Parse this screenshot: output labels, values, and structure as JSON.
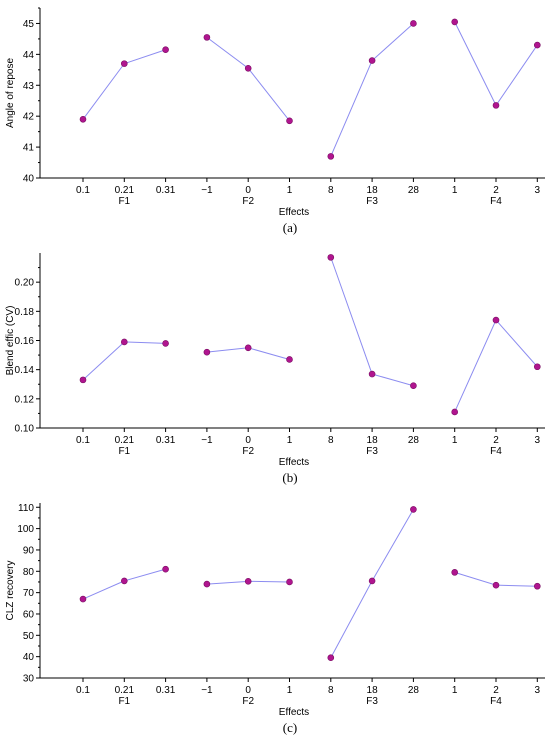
{
  "chart_data": [
    {
      "type": "line",
      "panel_label": "(a)",
      "ylabel": "Angle of repose",
      "xlabel": "Effects",
      "ylim": [
        40,
        45.5
      ],
      "yticks": [
        "40",
        "41",
        "42",
        "43",
        "44",
        "45"
      ],
      "groups": [
        {
          "name": "F1",
          "levels": [
            "0.1",
            "0.21",
            "0.31"
          ],
          "values": [
            41.9,
            43.7,
            44.15
          ]
        },
        {
          "name": "F2",
          "levels": [
            "−1",
            "0",
            "1"
          ],
          "values": [
            44.55,
            43.55,
            41.85
          ]
        },
        {
          "name": "F3",
          "levels": [
            "8",
            "18",
            "28"
          ],
          "values": [
            40.7,
            43.8,
            45.0
          ]
        },
        {
          "name": "F4",
          "levels": [
            "1",
            "2",
            "3"
          ],
          "values": [
            45.05,
            42.35,
            44.3
          ]
        }
      ],
      "grid": false
    },
    {
      "type": "line",
      "panel_label": "(b)",
      "ylabel": "Blend effic (CV)",
      "xlabel": "Effects",
      "ylim": [
        0.1,
        0.22
      ],
      "yticks": [
        "0.10",
        "0.12",
        "0.14",
        "0.16",
        "0.18",
        "0.20"
      ],
      "groups": [
        {
          "name": "F1",
          "levels": [
            "0.1",
            "0.21",
            "0.31"
          ],
          "values": [
            0.133,
            0.159,
            0.158
          ]
        },
        {
          "name": "F2",
          "levels": [
            "−1",
            "0",
            "1"
          ],
          "values": [
            0.152,
            0.155,
            0.147
          ]
        },
        {
          "name": "F3",
          "levels": [
            "8",
            "18",
            "28"
          ],
          "values": [
            0.217,
            0.137,
            0.129
          ]
        },
        {
          "name": "F4",
          "levels": [
            "1",
            "2",
            "3"
          ],
          "values": [
            0.111,
            0.174,
            0.142
          ]
        }
      ],
      "grid": false
    },
    {
      "type": "line",
      "panel_label": "(c)",
      "ylabel": "CLZ recovery",
      "xlabel": "Effects",
      "ylim": [
        30,
        112
      ],
      "yticks": [
        "30",
        "40",
        "50",
        "60",
        "70",
        "80",
        "90",
        "100",
        "110"
      ],
      "groups": [
        {
          "name": "F1",
          "levels": [
            "0.1",
            "0.21",
            "0.31"
          ],
          "values": [
            67,
            75.5,
            81
          ]
        },
        {
          "name": "F2",
          "levels": [
            "−1",
            "0",
            "1"
          ],
          "values": [
            74,
            75.3,
            75
          ]
        },
        {
          "name": "F3",
          "levels": [
            "8",
            "18",
            "28"
          ],
          "values": [
            39.5,
            75.5,
            109
          ]
        },
        {
          "name": "F4",
          "levels": [
            "1",
            "2",
            "3"
          ],
          "values": [
            79.5,
            73.5,
            73
          ]
        }
      ],
      "grid": false
    }
  ],
  "colors": {
    "line": "#8c8cf0",
    "marker": "#b0158f",
    "axis": "#000000"
  }
}
